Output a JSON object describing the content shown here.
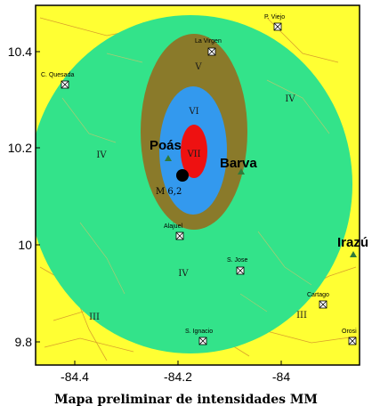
{
  "caption": "Mapa preliminar de intensidades MM",
  "axes": {
    "x_ticks": [
      "-84.4",
      "-84.2",
      "-84"
    ],
    "y_ticks": [
      "10.4",
      "10.2",
      "10",
      "9.8"
    ]
  },
  "zones": {
    "III_a": "III",
    "III_b": "III",
    "IV_a": "IV",
    "IV_b": "IV",
    "IV_c": "IV",
    "V": "V",
    "VI": "VI",
    "VII": "VII"
  },
  "zone_colors": {
    "III": "#ffff33",
    "IV": "#33e38a",
    "V": "#8a7a2a",
    "VI": "#3399ee",
    "VII": "#ee1111"
  },
  "epicenter": {
    "label": "M 6,2"
  },
  "volcanoes": [
    {
      "name": "Poás",
      "icon": "volcano-icon"
    },
    {
      "name": "Barva",
      "icon": "volcano-icon"
    },
    {
      "name": "Irazú",
      "icon": "volcano-icon"
    }
  ],
  "cities": [
    {
      "name": "P. Viejo",
      "icon": "town-marker-icon"
    },
    {
      "name": "La Virgen",
      "icon": "town-marker-icon"
    },
    {
      "name": "C. Quesada",
      "icon": "town-marker-icon"
    },
    {
      "name": "Alajuel",
      "icon": "town-marker-icon"
    },
    {
      "name": "S. Jose",
      "icon": "town-marker-icon"
    },
    {
      "name": "Cartago",
      "icon": "town-marker-icon"
    },
    {
      "name": "S. Ignacio",
      "icon": "town-marker-icon"
    },
    {
      "name": "Orosi",
      "icon": "town-marker-icon"
    }
  ]
}
